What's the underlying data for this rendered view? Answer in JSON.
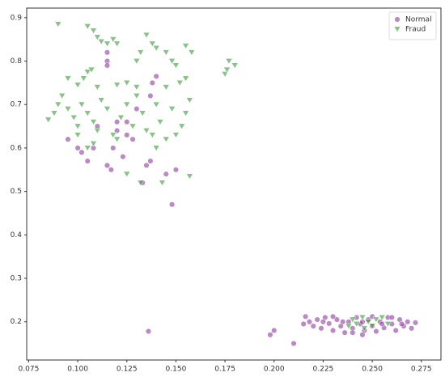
{
  "chart_data": {
    "type": "scatter",
    "xlim": [
      0.074,
      0.285
    ],
    "ylim": [
      0.112,
      0.922
    ],
    "xticks": [
      0.075,
      {
        "value": 0.1,
        "label": "0.100"
      },
      0.125,
      {
        "value": 0.15,
        "label": "0.150"
      },
      0.175,
      {
        "value": 0.2,
        "label": "0.200"
      },
      0.225,
      {
        "value": 0.25,
        "label": "0.250"
      },
      0.275
    ],
    "yticks": [
      0.2,
      0.3,
      0.4,
      0.5,
      0.6,
      0.7,
      0.8,
      0.9
    ],
    "grid": false,
    "legend": "upper-right",
    "series": [
      {
        "name": "Normal",
        "color": "#8e3a9d",
        "marker": "circle",
        "x": [
          0.115,
          0.115,
          0.115,
          0.138,
          0.14,
          0.137,
          0.13,
          0.12,
          0.125,
          0.118,
          0.1,
          0.102,
          0.105,
          0.108,
          0.115,
          0.117,
          0.123,
          0.135,
          0.137,
          0.145,
          0.15,
          0.148,
          0.133,
          0.12,
          0.125,
          0.128,
          0.11,
          0.095,
          0.136,
          0.2,
          0.198,
          0.21,
          0.216,
          0.218,
          0.22,
          0.222,
          0.224,
          0.226,
          0.228,
          0.23,
          0.232,
          0.234,
          0.236,
          0.238,
          0.24,
          0.242,
          0.244,
          0.246,
          0.248,
          0.25,
          0.252,
          0.254,
          0.256,
          0.258,
          0.26,
          0.262,
          0.264,
          0.266,
          0.268,
          0.27,
          0.272,
          0.225,
          0.235,
          0.245,
          0.255,
          0.265,
          0.215,
          0.23,
          0.25,
          0.26,
          0.245,
          0.24
        ],
        "values": [
          0.82,
          0.8,
          0.79,
          0.75,
          0.765,
          0.72,
          0.69,
          0.66,
          0.63,
          0.6,
          0.6,
          0.59,
          0.57,
          0.6,
          0.56,
          0.55,
          0.58,
          0.56,
          0.57,
          0.54,
          0.55,
          0.47,
          0.52,
          0.64,
          0.66,
          0.62,
          0.65,
          0.62,
          0.178,
          0.18,
          0.17,
          0.15,
          0.212,
          0.2,
          0.19,
          0.205,
          0.185,
          0.21,
          0.196,
          0.18,
          0.205,
          0.19,
          0.175,
          0.2,
          0.185,
          0.21,
          0.195,
          0.18,
          0.205,
          0.19,
          0.178,
          0.2,
          0.186,
          0.21,
          0.195,
          0.18,
          0.205,
          0.19,
          0.2,
          0.185,
          0.198,
          0.2,
          0.2,
          0.2,
          0.195,
          0.195,
          0.195,
          0.212,
          0.212,
          0.21,
          0.17,
          0.175
        ]
      },
      {
        "name": "Fraud",
        "color": "#3a9a3a",
        "marker": "triangle-down",
        "x": [
          0.09,
          0.105,
          0.108,
          0.11,
          0.112,
          0.115,
          0.118,
          0.12,
          0.135,
          0.138,
          0.14,
          0.145,
          0.155,
          0.158,
          0.148,
          0.15,
          0.13,
          0.132,
          0.105,
          0.107,
          0.103,
          0.095,
          0.1,
          0.11,
          0.12,
          0.125,
          0.13,
          0.145,
          0.152,
          0.155,
          0.085,
          0.088,
          0.09,
          0.092,
          0.095,
          0.098,
          0.1,
          0.102,
          0.105,
          0.108,
          0.11,
          0.112,
          0.115,
          0.118,
          0.12,
          0.122,
          0.125,
          0.128,
          0.13,
          0.133,
          0.135,
          0.138,
          0.14,
          0.142,
          0.145,
          0.148,
          0.15,
          0.153,
          0.155,
          0.157,
          0.105,
          0.1,
          0.125,
          0.132,
          0.143,
          0.157,
          0.14,
          0.108,
          0.175,
          0.177,
          0.18,
          0.176,
          0.24,
          0.242,
          0.245,
          0.248,
          0.25,
          0.252,
          0.255,
          0.258,
          0.238,
          0.246
        ],
        "values": [
          0.885,
          0.88,
          0.87,
          0.855,
          0.845,
          0.84,
          0.85,
          0.84,
          0.86,
          0.84,
          0.83,
          0.82,
          0.835,
          0.82,
          0.8,
          0.79,
          0.8,
          0.82,
          0.775,
          0.78,
          0.76,
          0.76,
          0.745,
          0.74,
          0.745,
          0.75,
          0.74,
          0.74,
          0.75,
          0.76,
          0.665,
          0.68,
          0.7,
          0.72,
          0.69,
          0.67,
          0.65,
          0.7,
          0.68,
          0.66,
          0.64,
          0.71,
          0.69,
          0.63,
          0.62,
          0.67,
          0.7,
          0.65,
          0.72,
          0.68,
          0.64,
          0.63,
          0.7,
          0.66,
          0.62,
          0.69,
          0.63,
          0.65,
          0.68,
          0.71,
          0.6,
          0.63,
          0.54,
          0.52,
          0.52,
          0.535,
          0.6,
          0.61,
          0.77,
          0.8,
          0.79,
          0.78,
          0.205,
          0.195,
          0.21,
          0.2,
          0.19,
          0.205,
          0.21,
          0.195,
          0.19,
          0.185
        ]
      }
    ]
  }
}
